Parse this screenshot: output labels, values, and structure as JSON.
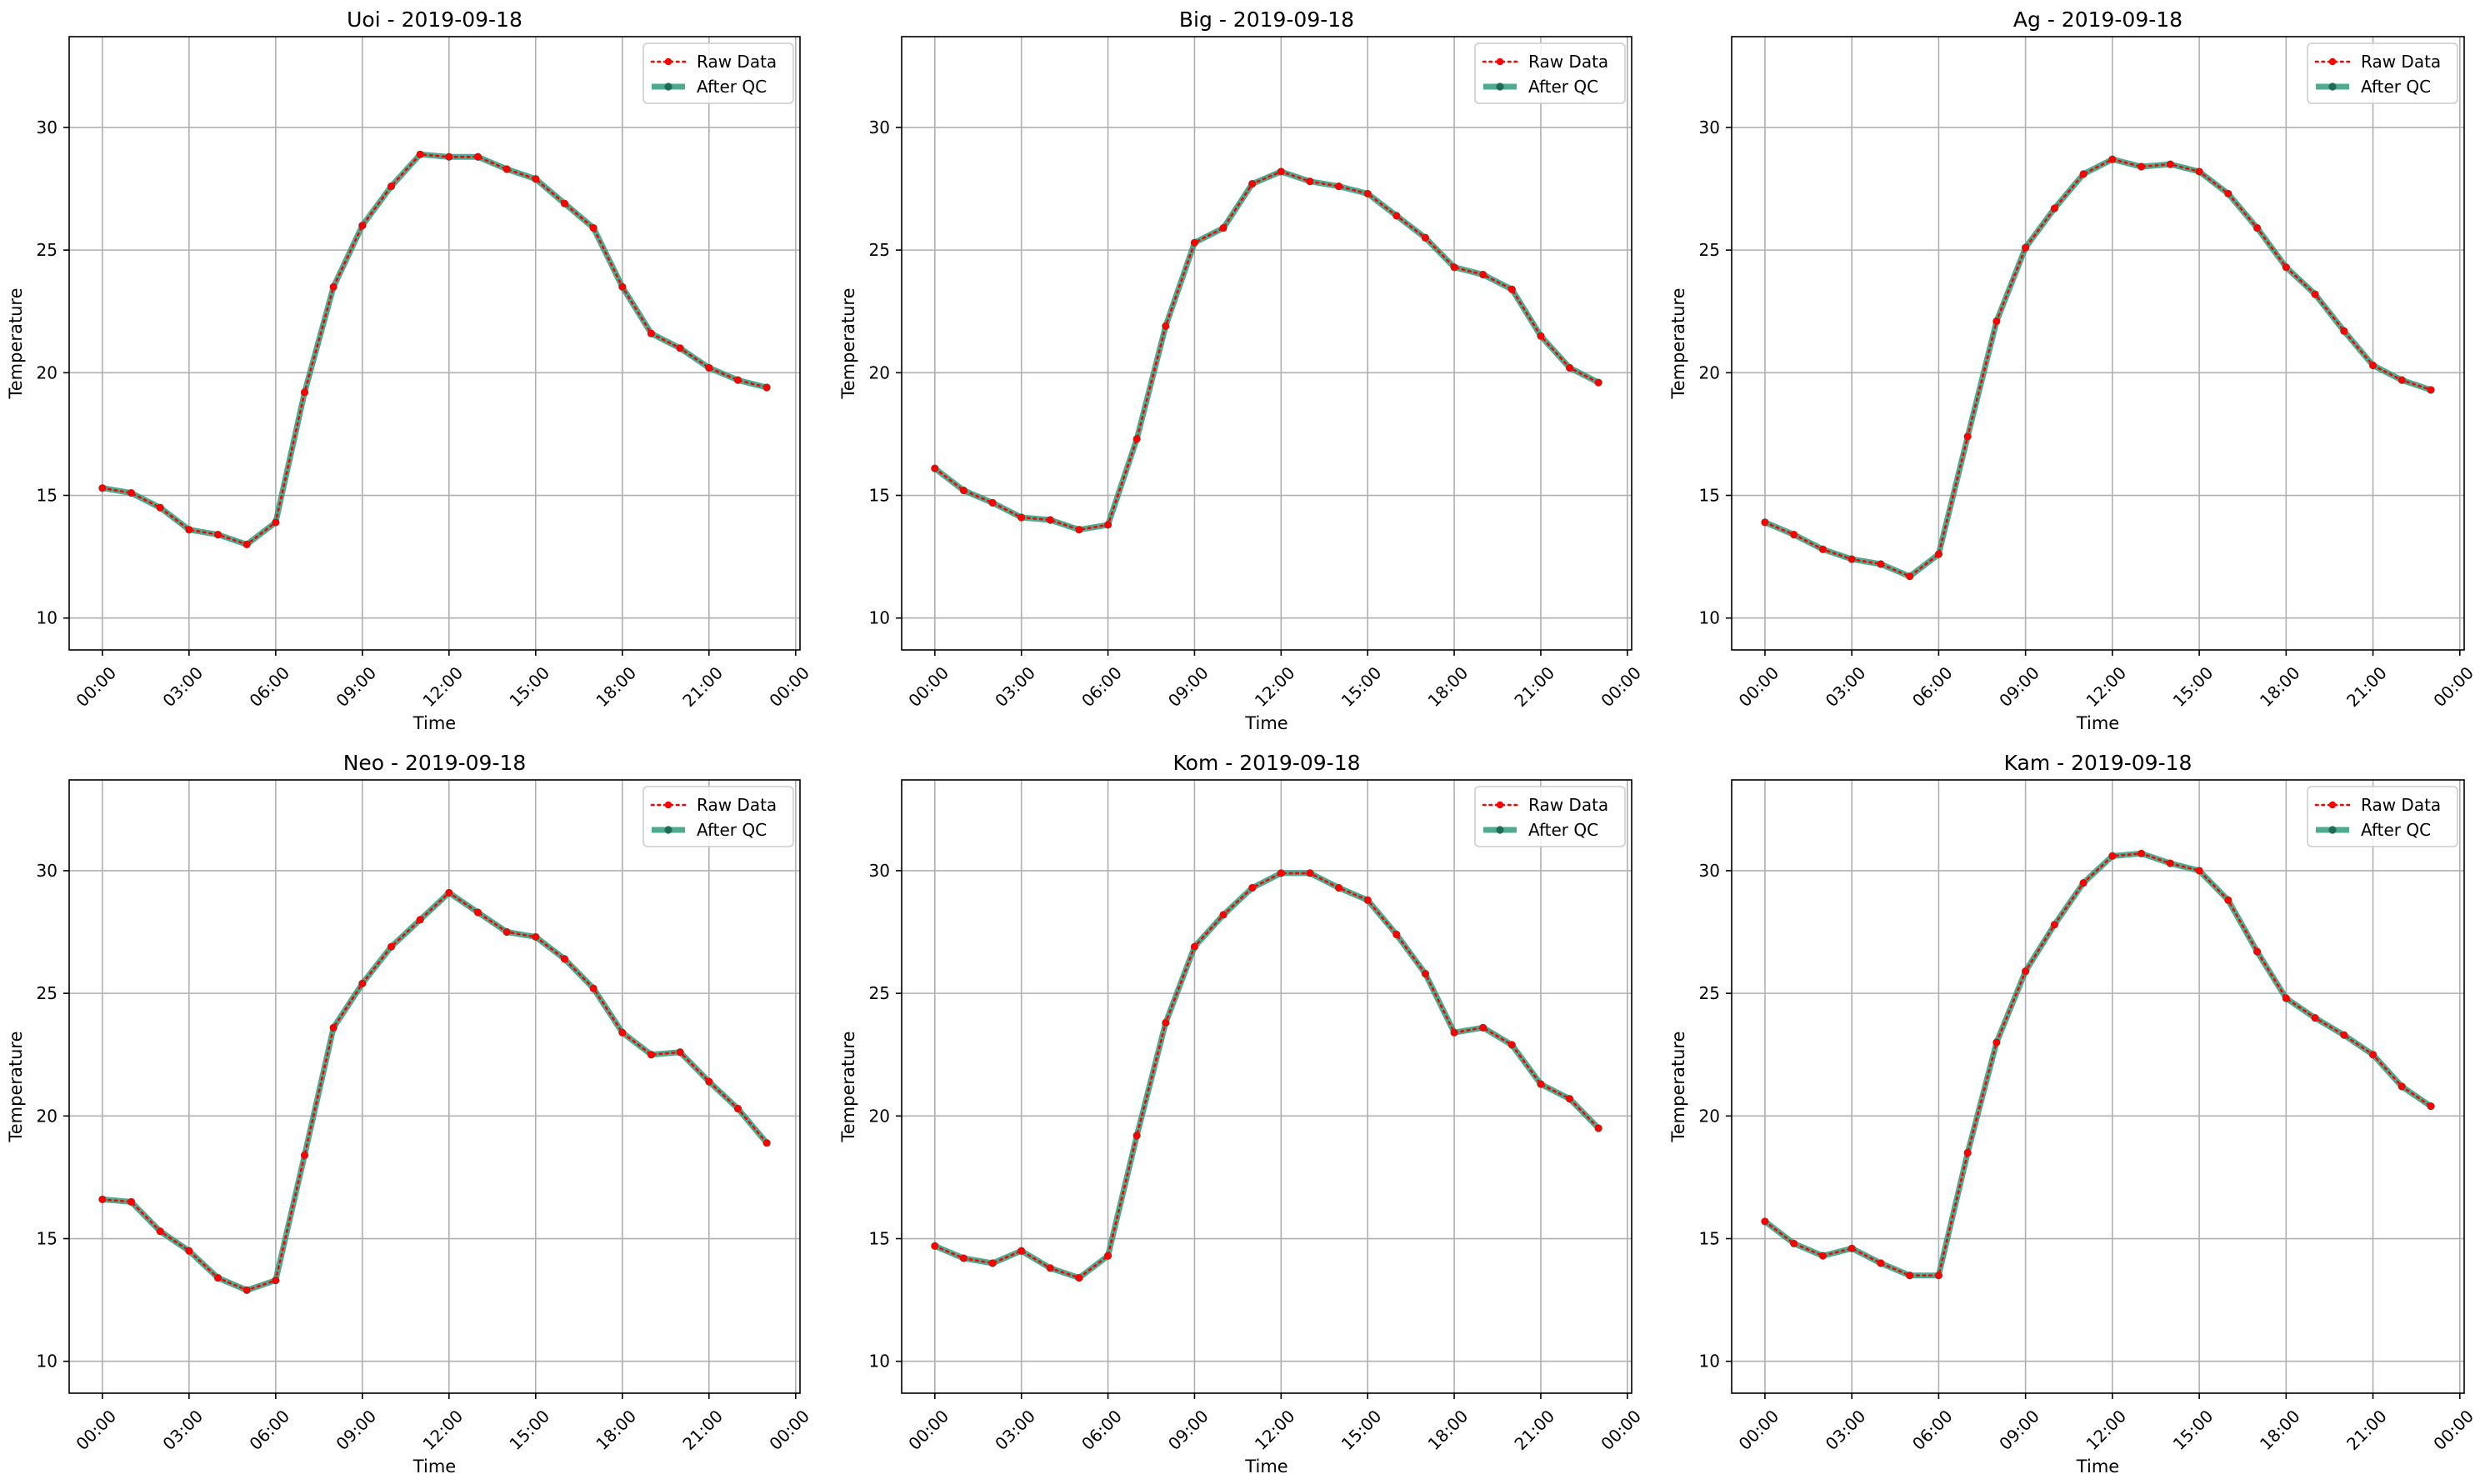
{
  "figure": {
    "series_legend": [
      "Raw Data",
      "After QC"
    ],
    "x_tick_labels": [
      "00:00",
      "03:00",
      "06:00",
      "09:00",
      "12:00",
      "15:00",
      "18:00",
      "21:00",
      "00:00"
    ],
    "y_ticks": [
      10,
      15,
      20,
      25,
      30
    ],
    "colors": {
      "raw": "#ff0000",
      "qc": "#2e9e7d",
      "qc_marker": "#1f6b55",
      "grid": "#b0b0b0"
    }
  },
  "chart_data": [
    {
      "type": "line",
      "title": "Uoi - 2019-09-18",
      "xlabel": "Time",
      "ylabel": "Temperature",
      "ylim": [
        8.7,
        33.7
      ],
      "xlim": [
        "2019-09-18 00:00",
        "2019-09-19 00:00"
      ],
      "grid": true,
      "legend_position": "top-right",
      "x": [
        "00:00",
        "01:00",
        "02:00",
        "03:00",
        "04:00",
        "05:00",
        "06:00",
        "07:00",
        "08:00",
        "09:00",
        "10:00",
        "11:00",
        "12:00",
        "13:00",
        "14:00",
        "15:00",
        "16:00",
        "17:00",
        "18:00",
        "19:00",
        "20:00",
        "21:00",
        "22:00",
        "23:00"
      ],
      "series": [
        {
          "name": "Raw Data",
          "values": [
            15.3,
            15.1,
            14.5,
            13.6,
            13.4,
            13.0,
            13.9,
            19.2,
            23.5,
            26.0,
            27.6,
            28.9,
            28.8,
            28.8,
            28.3,
            27.9,
            26.9,
            25.9,
            23.5,
            21.6,
            21.0,
            20.2,
            19.7,
            19.4
          ]
        },
        {
          "name": "After QC",
          "values": [
            15.3,
            15.1,
            14.5,
            13.6,
            13.4,
            13.0,
            13.9,
            19.2,
            23.5,
            26.0,
            27.6,
            28.9,
            28.8,
            28.8,
            28.3,
            27.9,
            26.9,
            25.9,
            23.5,
            21.6,
            21.0,
            20.2,
            19.7,
            19.4
          ]
        }
      ]
    },
    {
      "type": "line",
      "title": "Big - 2019-09-18",
      "xlabel": "Time",
      "ylabel": "Temperature",
      "ylim": [
        8.7,
        33.7
      ],
      "xlim": [
        "2019-09-18 00:00",
        "2019-09-19 00:00"
      ],
      "grid": true,
      "legend_position": "top-right",
      "x": [
        "00:00",
        "01:00",
        "02:00",
        "03:00",
        "04:00",
        "05:00",
        "06:00",
        "07:00",
        "08:00",
        "09:00",
        "10:00",
        "11:00",
        "12:00",
        "13:00",
        "14:00",
        "15:00",
        "16:00",
        "17:00",
        "18:00",
        "19:00",
        "20:00",
        "21:00",
        "22:00",
        "23:00"
      ],
      "series": [
        {
          "name": "Raw Data",
          "values": [
            16.1,
            15.2,
            14.7,
            14.1,
            14.0,
            13.6,
            13.8,
            17.3,
            21.9,
            25.3,
            25.9,
            27.7,
            28.2,
            27.8,
            27.6,
            27.3,
            26.4,
            25.5,
            24.3,
            24.0,
            23.4,
            21.5,
            20.2,
            19.6
          ]
        },
        {
          "name": "After QC",
          "values": [
            16.1,
            15.2,
            14.7,
            14.1,
            14.0,
            13.6,
            13.8,
            17.3,
            21.9,
            25.3,
            25.9,
            27.7,
            28.2,
            27.8,
            27.6,
            27.3,
            26.4,
            25.5,
            24.3,
            24.0,
            23.4,
            21.5,
            20.2,
            19.6
          ]
        }
      ]
    },
    {
      "type": "line",
      "title": "Ag - 2019-09-18",
      "xlabel": "Time",
      "ylabel": "Temperature",
      "ylim": [
        8.7,
        33.7
      ],
      "xlim": [
        "2019-09-18 00:00",
        "2019-09-19 00:00"
      ],
      "grid": true,
      "legend_position": "top-right",
      "x": [
        "00:00",
        "01:00",
        "02:00",
        "03:00",
        "04:00",
        "05:00",
        "06:00",
        "07:00",
        "08:00",
        "09:00",
        "10:00",
        "11:00",
        "12:00",
        "13:00",
        "14:00",
        "15:00",
        "16:00",
        "17:00",
        "18:00",
        "19:00",
        "20:00",
        "21:00",
        "22:00",
        "23:00"
      ],
      "series": [
        {
          "name": "Raw Data",
          "values": [
            13.9,
            13.4,
            12.8,
            12.4,
            12.2,
            11.7,
            12.6,
            17.4,
            22.1,
            25.1,
            26.7,
            28.1,
            28.7,
            28.4,
            28.5,
            28.2,
            27.3,
            25.9,
            24.3,
            23.2,
            21.7,
            20.3,
            19.7,
            19.3
          ]
        },
        {
          "name": "After QC",
          "values": [
            13.9,
            13.4,
            12.8,
            12.4,
            12.2,
            11.7,
            12.6,
            17.4,
            22.1,
            25.1,
            26.7,
            28.1,
            28.7,
            28.4,
            28.5,
            28.2,
            27.3,
            25.9,
            24.3,
            23.2,
            21.7,
            20.3,
            19.7,
            19.3
          ]
        }
      ]
    },
    {
      "type": "line",
      "title": "Neo - 2019-09-18",
      "xlabel": "Time",
      "ylabel": "Temperature",
      "ylim": [
        8.7,
        33.7
      ],
      "xlim": [
        "2019-09-18 00:00",
        "2019-09-19 00:00"
      ],
      "grid": true,
      "legend_position": "top-right",
      "x": [
        "00:00",
        "01:00",
        "02:00",
        "03:00",
        "04:00",
        "05:00",
        "06:00",
        "07:00",
        "08:00",
        "09:00",
        "10:00",
        "11:00",
        "12:00",
        "13:00",
        "14:00",
        "15:00",
        "16:00",
        "17:00",
        "18:00",
        "19:00",
        "20:00",
        "21:00",
        "22:00",
        "23:00"
      ],
      "series": [
        {
          "name": "Raw Data",
          "values": [
            16.6,
            16.5,
            15.3,
            14.5,
            13.4,
            12.9,
            13.3,
            18.4,
            23.6,
            25.4,
            26.9,
            28.0,
            29.1,
            28.3,
            27.5,
            27.3,
            26.4,
            25.2,
            23.4,
            22.5,
            22.6,
            21.4,
            20.3,
            18.9
          ]
        },
        {
          "name": "After QC",
          "values": [
            16.6,
            16.5,
            15.3,
            14.5,
            13.4,
            12.9,
            13.3,
            18.4,
            23.6,
            25.4,
            26.9,
            28.0,
            29.1,
            28.3,
            27.5,
            27.3,
            26.4,
            25.2,
            23.4,
            22.5,
            22.6,
            21.4,
            20.3,
            18.9
          ]
        }
      ]
    },
    {
      "type": "line",
      "title": "Kom - 2019-09-18",
      "xlabel": "Time",
      "ylabel": "Temperature",
      "ylim": [
        8.7,
        33.7
      ],
      "xlim": [
        "2019-09-18 00:00",
        "2019-09-19 00:00"
      ],
      "grid": true,
      "legend_position": "top-right",
      "x": [
        "00:00",
        "01:00",
        "02:00",
        "03:00",
        "04:00",
        "05:00",
        "06:00",
        "07:00",
        "08:00",
        "09:00",
        "10:00",
        "11:00",
        "12:00",
        "13:00",
        "14:00",
        "15:00",
        "16:00",
        "17:00",
        "18:00",
        "19:00",
        "20:00",
        "21:00",
        "22:00",
        "23:00"
      ],
      "series": [
        {
          "name": "Raw Data",
          "values": [
            14.7,
            14.2,
            14.0,
            14.5,
            13.8,
            13.4,
            14.3,
            19.2,
            23.8,
            26.9,
            28.2,
            29.3,
            29.9,
            29.9,
            29.3,
            28.8,
            27.4,
            25.8,
            23.4,
            23.6,
            22.9,
            21.3,
            20.7,
            19.5
          ]
        },
        {
          "name": "After QC",
          "values": [
            14.7,
            14.2,
            14.0,
            14.5,
            13.8,
            13.4,
            14.3,
            19.2,
            23.8,
            26.9,
            28.2,
            29.3,
            29.9,
            29.9,
            29.3,
            28.8,
            27.4,
            25.8,
            23.4,
            23.6,
            22.9,
            21.3,
            20.7,
            19.5
          ]
        }
      ]
    },
    {
      "type": "line",
      "title": "Kam - 2019-09-18",
      "xlabel": "Time",
      "ylabel": "Temperature",
      "ylim": [
        8.7,
        33.7
      ],
      "xlim": [
        "2019-09-18 00:00",
        "2019-09-19 00:00"
      ],
      "grid": true,
      "legend_position": "top-right",
      "x": [
        "00:00",
        "01:00",
        "02:00",
        "03:00",
        "04:00",
        "05:00",
        "06:00",
        "07:00",
        "08:00",
        "09:00",
        "10:00",
        "11:00",
        "12:00",
        "13:00",
        "14:00",
        "15:00",
        "16:00",
        "17:00",
        "18:00",
        "19:00",
        "20:00",
        "21:00",
        "22:00",
        "23:00"
      ],
      "series": [
        {
          "name": "Raw Data",
          "values": [
            15.7,
            14.8,
            14.3,
            14.6,
            14.0,
            13.5,
            13.5,
            18.5,
            23.0,
            25.9,
            27.8,
            29.5,
            30.6,
            30.7,
            30.3,
            30.0,
            28.8,
            26.7,
            24.8,
            24.0,
            23.3,
            22.5,
            21.2,
            20.4
          ]
        },
        {
          "name": "After QC",
          "values": [
            15.7,
            14.8,
            14.3,
            14.6,
            14.0,
            13.5,
            13.5,
            18.5,
            23.0,
            25.9,
            27.8,
            29.5,
            30.6,
            30.7,
            30.3,
            30.0,
            28.8,
            26.7,
            24.8,
            24.0,
            23.3,
            22.5,
            21.2,
            20.4
          ]
        }
      ]
    }
  ]
}
